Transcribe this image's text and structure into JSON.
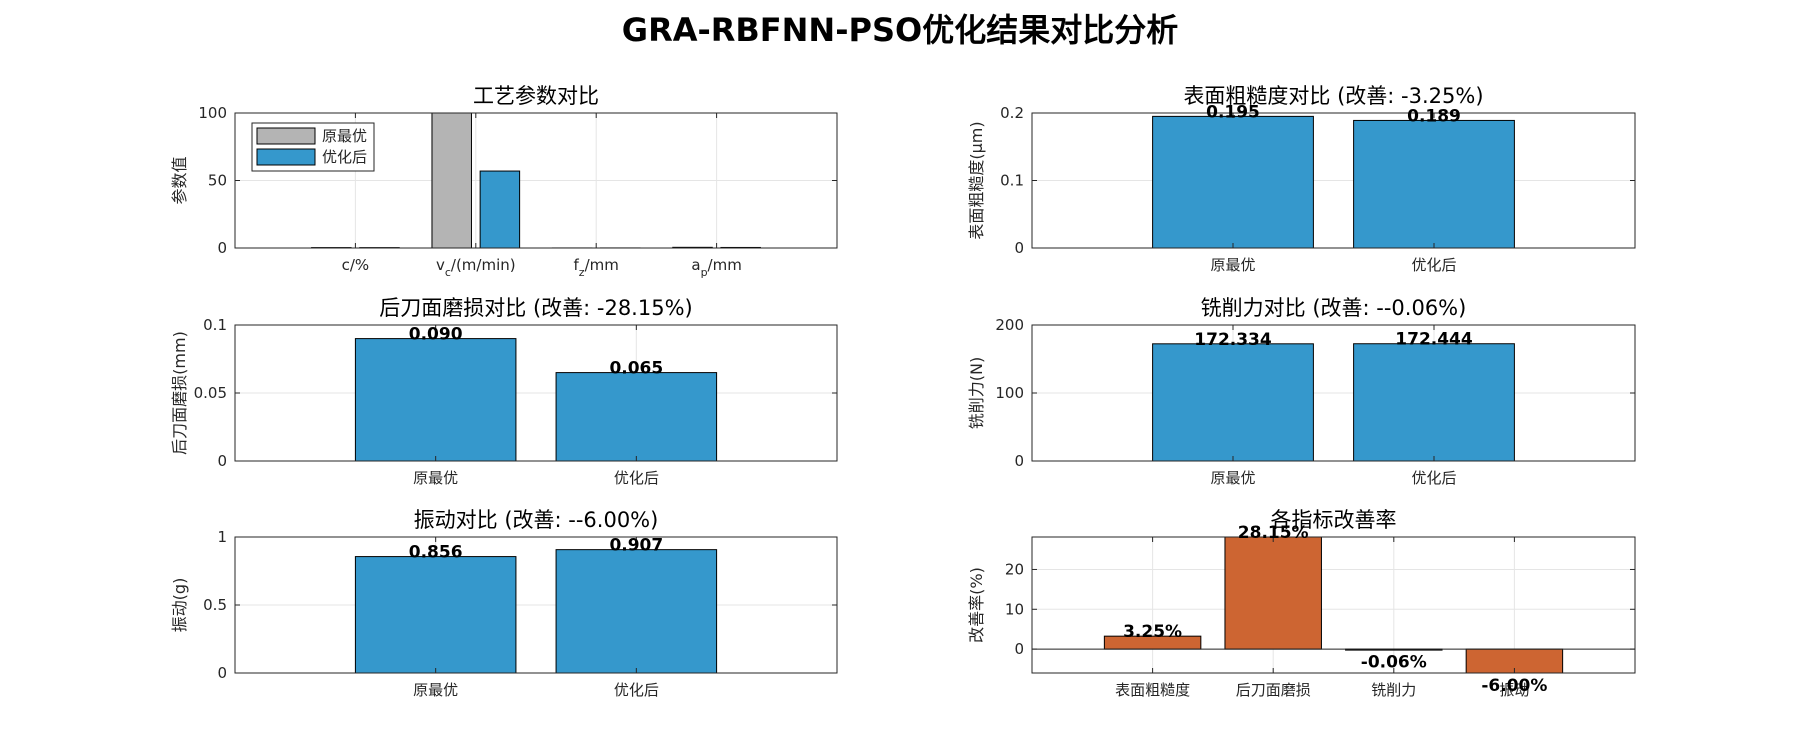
{
  "figure": {
    "title": "GRA-RBFNN-PSO优化结果对比分析",
    "colors": {
      "original": "#b4b4b4",
      "optimized": "#3598cc",
      "improve": "#cd6532",
      "grid": "#e5e5e5",
      "axis": "#262626"
    }
  },
  "chart_data": [
    {
      "id": "params",
      "type": "bar",
      "title": "工艺参数对比",
      "ylabel": "参数值",
      "xlabel": "",
      "ylim": [
        0,
        100
      ],
      "yticks": [
        0,
        50,
        100
      ],
      "grid": true,
      "legend": {
        "position": "top-left",
        "entries": [
          "原最优",
          "优化后"
        ]
      },
      "categories": [
        {
          "base": "c/%",
          "sub": "",
          "suffix": ""
        },
        {
          "base": "v",
          "sub": "c",
          "suffix": "/(m/min)"
        },
        {
          "base": "f",
          "sub": "z",
          "suffix": "/mm"
        },
        {
          "base": "a",
          "sub": "p",
          "suffix": "/mm"
        }
      ],
      "series": [
        {
          "name": "原最优",
          "color": "#b4b4b4",
          "values": [
            0.3,
            120,
            0.05,
            0.5
          ]
        },
        {
          "name": "优化后",
          "color": "#3598cc",
          "values": [
            0.28,
            57,
            0.06,
            0.4
          ]
        }
      ]
    },
    {
      "id": "roughness",
      "type": "bar",
      "title": "表面粗糙度对比 (改善: -3.25%)",
      "ylabel": "表面粗糙度(μm)",
      "xlabel": "",
      "ylim": [
        0,
        0.2
      ],
      "yticks": [
        0,
        0.1,
        0.2
      ],
      "grid": true,
      "categories": [
        "原最优",
        "优化后"
      ],
      "values": [
        0.195,
        0.189
      ],
      "labels": [
        "0.195",
        "0.189"
      ],
      "color": "#3598cc"
    },
    {
      "id": "wear",
      "type": "bar",
      "title": "后刀面磨损对比 (改善: -28.15%)",
      "ylabel": "后刀面磨损(mm)",
      "xlabel": "",
      "ylim": [
        0,
        0.1
      ],
      "yticks": [
        0,
        0.05,
        0.1
      ],
      "grid": true,
      "categories": [
        "原最优",
        "优化后"
      ],
      "values": [
        0.09,
        0.065
      ],
      "labels": [
        "0.090",
        "0.065"
      ],
      "color": "#3598cc"
    },
    {
      "id": "force",
      "type": "bar",
      "title": "铣削力对比 (改善: --0.06%)",
      "ylabel": "铣削力(N)",
      "xlabel": "",
      "ylim": [
        0,
        200
      ],
      "yticks": [
        0,
        100,
        200
      ],
      "grid": true,
      "categories": [
        "原最优",
        "优化后"
      ],
      "values": [
        172.334,
        172.444
      ],
      "labels": [
        "172.334",
        "172.444"
      ],
      "color": "#3598cc"
    },
    {
      "id": "vibration",
      "type": "bar",
      "title": "振动对比 (改善: --6.00%)",
      "ylabel": "振动(g)",
      "xlabel": "",
      "ylim": [
        0,
        1
      ],
      "yticks": [
        0,
        0.5,
        1
      ],
      "grid": true,
      "categories": [
        "原最优",
        "优化后"
      ],
      "values": [
        0.856,
        0.907
      ],
      "labels": [
        "0.856",
        "0.907"
      ],
      "color": "#3598cc"
    },
    {
      "id": "improvement",
      "type": "bar",
      "title": "各指标改善率",
      "ylabel": "改善率(%)",
      "xlabel": "",
      "ylim": [
        -6,
        28.15
      ],
      "yticks": [
        0,
        10,
        20
      ],
      "grid": true,
      "categories": [
        "表面粗糙度",
        "后刀面磨损",
        "铣削力",
        "振动"
      ],
      "values": [
        3.25,
        28.15,
        -0.06,
        -6.0
      ],
      "labels": [
        "3.25%",
        "28.15%",
        "-0.06%",
        "-6.00%"
      ],
      "color": "#cd6532"
    }
  ]
}
